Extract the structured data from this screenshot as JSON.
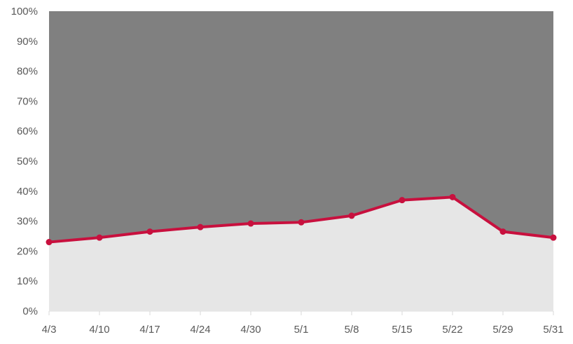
{
  "chart_data": {
    "type": "area",
    "categories": [
      "4/3",
      "4/10",
      "4/17",
      "4/24",
      "4/30",
      "5/1",
      "5/8",
      "5/15",
      "5/22",
      "5/29",
      "5/31"
    ],
    "series": [
      {
        "values": [
          23,
          24.5,
          26.5,
          28,
          29.2,
          29.6,
          31.8,
          37,
          38,
          26.5,
          24.5
        ],
        "color": "#C8103E",
        "fill": "#E6E6E6",
        "marker": "circle"
      }
    ],
    "remainder_fill": "#808080",
    "ylim": [
      0,
      100
    ],
    "y_ticks": [
      "0%",
      "10%",
      "20%",
      "30%",
      "40%",
      "50%",
      "60%",
      "70%",
      "80%",
      "90%",
      "100%"
    ],
    "title": "",
    "xlabel": "",
    "ylabel": "",
    "grid": false,
    "legend": "none"
  }
}
